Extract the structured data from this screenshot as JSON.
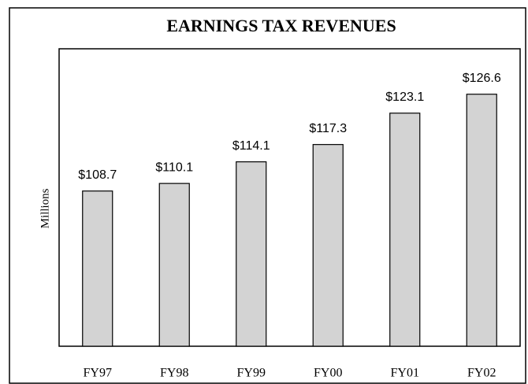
{
  "chart_data": {
    "type": "bar",
    "title": "EARNINGS TAX REVENUES",
    "y_label": "Millions",
    "categories": [
      "FY97",
      "FY98",
      "FY99",
      "FY00",
      "FY01",
      "FY02"
    ],
    "values": [
      108.7,
      110.1,
      114.1,
      117.3,
      123.1,
      126.6
    ],
    "value_labels": [
      "$108.7",
      "$110.1",
      "$114.1",
      "$117.3",
      "$123.1",
      "$126.6"
    ],
    "color": "#d3d3d3",
    "ylim": [
      80,
      135
    ]
  }
}
